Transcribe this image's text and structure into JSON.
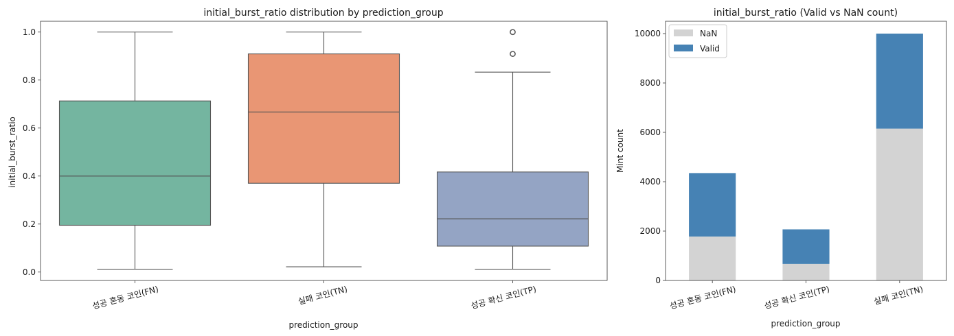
{
  "chart_data": [
    {
      "type": "box",
      "title": "initial_burst_ratio distribution by prediction_group",
      "xlabel": "prediction_group",
      "ylabel": "initial_burst_ratio",
      "ylim": [
        -0.035,
        1.045
      ],
      "yticks": [
        0.0,
        0.2,
        0.4,
        0.6,
        0.8,
        1.0
      ],
      "ytick_labels": [
        "0.0",
        "0.2",
        "0.4",
        "0.6",
        "0.8",
        "1.0"
      ],
      "categories": [
        "성공 혼동 코인(FN)",
        "실패 코인(TN)",
        "성공 확신 코인(TP)"
      ],
      "boxes": [
        {
          "q1": 0.195,
          "median": 0.4,
          "q3": 0.713,
          "whisker_low": 0.012,
          "whisker_high": 1.0,
          "outliers": [],
          "color": "#74b5a0"
        },
        {
          "q1": 0.37,
          "median": 0.667,
          "q3": 0.909,
          "whisker_low": 0.022,
          "whisker_high": 1.0,
          "outliers": [],
          "color": "#e99674"
        },
        {
          "q1": 0.108,
          "median": 0.222,
          "q3": 0.417,
          "whisker_low": 0.012,
          "whisker_high": 0.833,
          "outliers": [
            0.909,
            1.0
          ],
          "color": "#94a4c4"
        }
      ],
      "grid": false
    },
    {
      "type": "stacked_bar",
      "title": "initial_burst_ratio (Valid vs NaN count)",
      "xlabel": "prediction_group",
      "ylabel": "Mint count",
      "ylim": [
        0,
        10500
      ],
      "yticks": [
        0,
        2000,
        4000,
        6000,
        8000,
        10000
      ],
      "ytick_labels": [
        "0",
        "2000",
        "4000",
        "6000",
        "8000",
        "10000"
      ],
      "categories": [
        "성공 혼동 코인(FN)",
        "성공 확신 코인(TP)",
        "실패 코인(TN)"
      ],
      "series": [
        {
          "name": "NaN",
          "values": [
            1780,
            670,
            6150
          ],
          "color": "#d3d3d3"
        },
        {
          "name": "Valid",
          "values": [
            2570,
            1400,
            3850
          ],
          "color": "#4682b4"
        }
      ],
      "legend_position": "top-left",
      "grid": false
    }
  ]
}
